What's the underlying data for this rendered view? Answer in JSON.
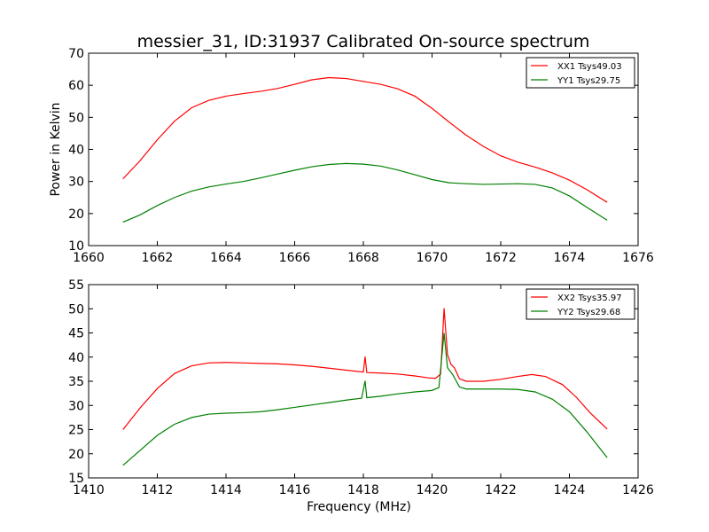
{
  "figure": {
    "title": "messier_31, ID:31937 Calibrated On-source spectrum"
  },
  "colors": {
    "red": "#ff0000",
    "green": "#008000",
    "axis": "#000000"
  },
  "chart_data": [
    {
      "type": "line",
      "title": "messier_31, ID:31937 Calibrated On-source spectrum",
      "xlabel": "",
      "ylabel": "Power in Kelvin",
      "xlim": [
        1660,
        1676
      ],
      "ylim": [
        10,
        70
      ],
      "xticks": [
        1660,
        1662,
        1664,
        1666,
        1668,
        1670,
        1672,
        1674,
        1676
      ],
      "yticks": [
        10,
        20,
        30,
        40,
        50,
        60,
        70
      ],
      "grid": false,
      "legend": "top-right",
      "series": [
        {
          "name": "XX1 Tsys49.03",
          "color": "#ff0000",
          "points": [
            [
              1661.0,
              30.8
            ],
            [
              1661.5,
              36.5
            ],
            [
              1662.0,
              43.0
            ],
            [
              1662.5,
              48.8
            ],
            [
              1663.0,
              53.0
            ],
            [
              1663.5,
              55.3
            ],
            [
              1664.0,
              56.6
            ],
            [
              1664.5,
              57.4
            ],
            [
              1665.0,
              58.1
            ],
            [
              1665.5,
              59.0
            ],
            [
              1666.0,
              60.3
            ],
            [
              1666.5,
              61.7
            ],
            [
              1667.0,
              62.4
            ],
            [
              1667.5,
              62.1
            ],
            [
              1668.0,
              61.2
            ],
            [
              1668.5,
              60.3
            ],
            [
              1669.0,
              58.9
            ],
            [
              1669.5,
              56.6
            ],
            [
              1670.0,
              52.8
            ],
            [
              1670.5,
              48.5
            ],
            [
              1671.0,
              44.4
            ],
            [
              1671.5,
              40.9
            ],
            [
              1672.0,
              38.0
            ],
            [
              1672.5,
              36.0
            ],
            [
              1673.0,
              34.5
            ],
            [
              1673.5,
              32.7
            ],
            [
              1674.0,
              30.4
            ],
            [
              1674.5,
              27.5
            ],
            [
              1675.1,
              23.5
            ]
          ]
        },
        {
          "name": "YY1 Tsys29.75",
          "color": "#008000",
          "points": [
            [
              1661.0,
              17.3
            ],
            [
              1661.5,
              19.6
            ],
            [
              1662.0,
              22.5
            ],
            [
              1662.5,
              25.0
            ],
            [
              1663.0,
              27.0
            ],
            [
              1663.5,
              28.3
            ],
            [
              1664.0,
              29.2
            ],
            [
              1664.5,
              30.0
            ],
            [
              1665.0,
              31.1
            ],
            [
              1665.5,
              32.3
            ],
            [
              1666.0,
              33.5
            ],
            [
              1666.5,
              34.6
            ],
            [
              1667.0,
              35.3
            ],
            [
              1667.5,
              35.6
            ],
            [
              1668.0,
              35.4
            ],
            [
              1668.5,
              34.8
            ],
            [
              1669.0,
              33.6
            ],
            [
              1669.5,
              32.1
            ],
            [
              1670.0,
              30.6
            ],
            [
              1670.5,
              29.6
            ],
            [
              1671.0,
              29.3
            ],
            [
              1671.5,
              29.1
            ],
            [
              1672.0,
              29.2
            ],
            [
              1672.5,
              29.3
            ],
            [
              1673.0,
              29.1
            ],
            [
              1673.5,
              28.0
            ],
            [
              1674.0,
              25.5
            ],
            [
              1674.5,
              22.0
            ],
            [
              1675.1,
              17.9
            ]
          ]
        }
      ]
    },
    {
      "type": "line",
      "title": "",
      "xlabel": "Frequency (MHz)",
      "ylabel": "",
      "xlim": [
        1410,
        1426
      ],
      "ylim": [
        15,
        55
      ],
      "xticks": [
        1410,
        1412,
        1414,
        1416,
        1418,
        1420,
        1422,
        1424,
        1426
      ],
      "yticks": [
        15,
        20,
        25,
        30,
        35,
        40,
        45,
        50,
        55
      ],
      "grid": false,
      "legend": "top-right",
      "series": [
        {
          "name": "XX2 Tsys35.97",
          "color": "#ff0000",
          "points": [
            [
              1411.0,
              25.0
            ],
            [
              1411.5,
              29.5
            ],
            [
              1412.0,
              33.5
            ],
            [
              1412.5,
              36.6
            ],
            [
              1413.0,
              38.2
            ],
            [
              1413.5,
              38.8
            ],
            [
              1414.0,
              38.9
            ],
            [
              1414.5,
              38.8
            ],
            [
              1415.0,
              38.7
            ],
            [
              1415.5,
              38.6
            ],
            [
              1416.0,
              38.4
            ],
            [
              1416.5,
              38.1
            ],
            [
              1417.0,
              37.7
            ],
            [
              1417.5,
              37.3
            ],
            [
              1418.0,
              36.9
            ],
            [
              1418.05,
              40.1
            ],
            [
              1418.1,
              36.8
            ],
            [
              1418.5,
              36.7
            ],
            [
              1419.0,
              36.5
            ],
            [
              1419.5,
              36.1
            ],
            [
              1419.9,
              35.7
            ],
            [
              1420.1,
              35.6
            ],
            [
              1420.25,
              36.5
            ],
            [
              1420.35,
              50.1
            ],
            [
              1420.45,
              40.5
            ],
            [
              1420.55,
              38.5
            ],
            [
              1420.65,
              37.8
            ],
            [
              1420.8,
              35.5
            ],
            [
              1421.0,
              35.0
            ],
            [
              1421.5,
              35.0
            ],
            [
              1422.0,
              35.4
            ],
            [
              1422.5,
              36.0
            ],
            [
              1422.9,
              36.4
            ],
            [
              1423.3,
              36.0
            ],
            [
              1423.8,
              34.3
            ],
            [
              1424.2,
              31.7
            ],
            [
              1424.6,
              28.5
            ],
            [
              1425.1,
              25.1
            ]
          ]
        },
        {
          "name": "YY2 Tsys29.68",
          "color": "#008000",
          "points": [
            [
              1411.0,
              17.6
            ],
            [
              1411.5,
              20.7
            ],
            [
              1412.0,
              23.8
            ],
            [
              1412.5,
              26.1
            ],
            [
              1413.0,
              27.5
            ],
            [
              1413.5,
              28.2
            ],
            [
              1414.0,
              28.4
            ],
            [
              1414.5,
              28.5
            ],
            [
              1415.0,
              28.7
            ],
            [
              1415.5,
              29.1
            ],
            [
              1416.0,
              29.6
            ],
            [
              1416.5,
              30.1
            ],
            [
              1417.0,
              30.6
            ],
            [
              1417.5,
              31.1
            ],
            [
              1417.95,
              31.5
            ],
            [
              1418.05,
              35.1
            ],
            [
              1418.1,
              31.6
            ],
            [
              1418.5,
              31.9
            ],
            [
              1419.0,
              32.4
            ],
            [
              1419.5,
              32.8
            ],
            [
              1420.0,
              33.1
            ],
            [
              1420.2,
              33.7
            ],
            [
              1420.35,
              45.0
            ],
            [
              1420.45,
              37.8
            ],
            [
              1420.6,
              36.4
            ],
            [
              1420.8,
              33.8
            ],
            [
              1421.0,
              33.4
            ],
            [
              1421.5,
              33.4
            ],
            [
              1422.0,
              33.4
            ],
            [
              1422.5,
              33.3
            ],
            [
              1423.0,
              32.8
            ],
            [
              1423.5,
              31.3
            ],
            [
              1424.0,
              28.7
            ],
            [
              1424.5,
              24.6
            ],
            [
              1425.1,
              19.2
            ]
          ]
        }
      ]
    }
  ]
}
